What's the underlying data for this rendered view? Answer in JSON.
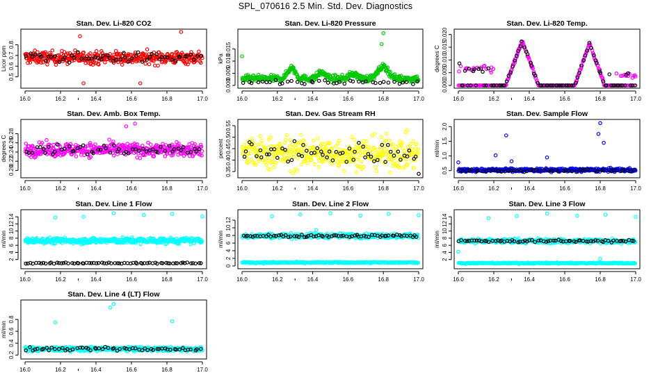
{
  "page": {
    "title": "SPL_070616  2.5 Min. Std. Dev. Diagnostics"
  },
  "series_colors": {
    "red": "#ff0000",
    "green": "#00c800",
    "magenta": "#ff00ff",
    "yellow": "#ffff00",
    "blue": "#0000ff",
    "cyan": "#00ffff",
    "black": "#000000"
  },
  "chart_data": [
    {
      "id": "co2",
      "type": "scatter",
      "title": "Stan. Dev. Li-820 CO2",
      "ylabel": "Licor ppm",
      "xlim": [
        16.0,
        17.0
      ],
      "ylim": [
        0.42,
        0.92
      ],
      "xticks": [
        "16.0",
        "16.2",
        "16.4",
        "16.6",
        "16.8",
        "17.0"
      ],
      "yticks": [
        {
          "v": 0.5,
          "l": "0.5"
        },
        {
          "v": 0.6,
          "l": "0.6"
        },
        {
          "v": 0.7,
          "l": "0.7"
        },
        {
          "v": 0.8,
          "l": "0.8"
        }
      ],
      "series": [
        {
          "color": "red",
          "n": 420,
          "mode": "band",
          "base": 0.68,
          "spread": 0.1
        },
        {
          "color": "black",
          "n": 55,
          "mode": "band",
          "base": 0.68,
          "spread": 0.08
        },
        {
          "color": "red",
          "mode": "points",
          "x": [
            16.33,
            16.65,
            16.88,
            16.31
          ],
          "y": [
            0.44,
            0.44,
            0.92,
            0.88
          ]
        }
      ]
    },
    {
      "id": "pressure",
      "type": "scatter",
      "title": "Stan. Dev. Li-820 Pressure",
      "ylabel": "kPa",
      "xlim": [
        16.0,
        17.0
      ],
      "ylim": [
        0.0,
        0.022
      ],
      "xticks": [
        "16.0",
        "16.2",
        "16.4",
        "16.6",
        "16.8",
        "17.0"
      ],
      "yticks": [
        {
          "v": 0.0,
          "l": "0.000"
        },
        {
          "v": 0.005,
          "l": "0.005"
        },
        {
          "v": 0.01,
          "l": "0.010"
        },
        {
          "v": 0.015,
          "l": "0.015"
        }
      ],
      "series": [
        {
          "color": "green",
          "n": 420,
          "mode": "pressure"
        },
        {
          "color": "black",
          "n": 40,
          "mode": "band",
          "base": 0.0012,
          "spread": 0.002
        },
        {
          "color": "green",
          "mode": "points",
          "x": [
            16.8,
            16.79,
            16.0
          ],
          "y": [
            0.0215,
            0.017,
            0.012
          ]
        }
      ]
    },
    {
      "id": "temp",
      "type": "scatter",
      "title": "Stan. Dev. Li-820 Temp.",
      "ylabel": "degrees C",
      "xlim": [
        16.0,
        17.0
      ],
      "ylim": [
        0.0,
        0.021
      ],
      "xticks": [
        "16.0",
        "16.2",
        "16.4",
        "16.6",
        "16.8",
        "17.0"
      ],
      "yticks": [
        {
          "v": 0.0,
          "l": "0.000"
        },
        {
          "v": 0.005,
          "l": "0.005"
        },
        {
          "v": 0.01,
          "l": "0.010"
        },
        {
          "v": 0.015,
          "l": "0.015"
        },
        {
          "v": 0.02,
          "l": "0.020"
        }
      ],
      "series": [
        {
          "color": "magenta",
          "n": 300,
          "mode": "temp"
        },
        {
          "color": "black",
          "n": 90,
          "mode": "temp"
        }
      ]
    },
    {
      "id": "ambbox",
      "type": "scatter",
      "title": "Stan. Dev. Amb. Box Temp.",
      "ylabel": "degrees C",
      "xlim": [
        16.0,
        17.0
      ],
      "ylim": [
        0.19,
        0.305
      ],
      "xticks": [
        "16.0",
        "16.2",
        "16.4",
        "16.6",
        "16.8",
        "17.0"
      ],
      "yticks": [
        {
          "v": 0.2,
          "l": "0.20"
        },
        {
          "v": 0.22,
          "l": "0.22"
        },
        {
          "v": 0.24,
          "l": "0.24"
        },
        {
          "v": 0.26,
          "l": "0.26"
        },
        {
          "v": 0.28,
          "l": "0.28"
        }
      ],
      "series": [
        {
          "color": "magenta",
          "n": 420,
          "mode": "band",
          "base": 0.245,
          "spread": 0.025
        },
        {
          "color": "black",
          "n": 55,
          "mode": "band",
          "base": 0.245,
          "spread": 0.02
        },
        {
          "color": "magenta",
          "mode": "points",
          "x": [
            16.62,
            16.57
          ],
          "y": [
            0.302,
            0.296
          ]
        }
      ]
    },
    {
      "id": "rh",
      "type": "scatter",
      "title": "Stan. Dev. Gas Stream RH",
      "ylabel": "percent",
      "xlim": [
        16.0,
        17.0
      ],
      "ylim": [
        0.335,
        0.565
      ],
      "xticks": [
        "16.0",
        "16.2",
        "16.4",
        "16.6",
        "16.8",
        "17.0"
      ],
      "yticks": [
        {
          "v": 0.35,
          "l": "0.35"
        },
        {
          "v": 0.4,
          "l": "0.40"
        },
        {
          "v": 0.45,
          "l": "0.45"
        },
        {
          "v": 0.5,
          "l": "0.50"
        },
        {
          "v": 0.55,
          "l": "0.55"
        }
      ],
      "series": [
        {
          "color": "yellow",
          "n": 420,
          "mode": "band",
          "base": 0.43,
          "spread": 0.12
        },
        {
          "color": "black",
          "n": 55,
          "mode": "band",
          "base": 0.43,
          "spread": 0.09
        },
        {
          "color": "black",
          "mode": "points",
          "x": [
            17.0
          ],
          "y": [
            0.34
          ]
        }
      ]
    },
    {
      "id": "sampleflow",
      "type": "scatter",
      "title": "Stan. Dev. Sample Flow",
      "ylabel": "ml/min",
      "xlim": [
        16.0,
        17.0
      ],
      "ylim": [
        0.35,
        2.15
      ],
      "xticks": [
        "16.0",
        "16.2",
        "16.4",
        "16.6",
        "16.8",
        "17.0"
      ],
      "yticks": [
        {
          "v": 0.5,
          "l": "0.5"
        },
        {
          "v": 1.0,
          "l": "1.0"
        },
        {
          "v": 1.5,
          "l": "1.5"
        },
        {
          "v": 2.0,
          "l": "2.0"
        }
      ],
      "series": [
        {
          "color": "blue",
          "n": 420,
          "mode": "band",
          "base": 0.52,
          "spread": 0.1
        },
        {
          "color": "black",
          "n": 55,
          "mode": "band",
          "base": 0.5,
          "spread": 0.07
        },
        {
          "color": "blue",
          "mode": "points",
          "x": [
            16.8,
            16.79,
            16.82,
            16.27,
            16.21,
            16.5,
            16.0,
            16.3
          ],
          "y": [
            2.12,
            1.75,
            1.45,
            1.7,
            1.02,
            0.95,
            0.78,
            0.82
          ]
        }
      ]
    },
    {
      "id": "line1",
      "type": "scatter",
      "title": "Stan. Dev. Line 1 Flow",
      "ylabel": "ml/min",
      "xlim": [
        16.0,
        17.0
      ],
      "ylim": [
        0.2,
        15.2
      ],
      "xticks": [
        "16.0",
        "16.2",
        "16.4",
        "16.6",
        "16.8",
        "17.0"
      ],
      "yticks": [
        {
          "v": 2,
          "l": "2"
        },
        {
          "v": 4,
          "l": "4"
        },
        {
          "v": 6,
          "l": "6"
        },
        {
          "v": 8,
          "l": "8"
        },
        {
          "v": 10,
          "l": "10"
        },
        {
          "v": 12,
          "l": "12"
        },
        {
          "v": 14,
          "l": "14"
        }
      ],
      "series": [
        {
          "color": "cyan",
          "n": 420,
          "mode": "band",
          "base": 7.3,
          "spread": 1.4
        },
        {
          "color": "black",
          "n": 70,
          "mode": "band",
          "base": 1.0,
          "spread": 0.3
        },
        {
          "color": "cyan",
          "mode": "points",
          "x": [
            16.17,
            16.33,
            16.5,
            16.67,
            16.83,
            17.0
          ],
          "y": [
            13.8,
            14.0,
            15.0,
            14.5,
            14.8,
            14.1
          ]
        }
      ]
    },
    {
      "id": "line2",
      "type": "scatter",
      "title": "Stan. Dev. Line 2 Flow",
      "ylabel": "ml/min",
      "xlim": [
        16.0,
        17.0
      ],
      "ylim": [
        0.0,
        14.0
      ],
      "xticks": [
        "16.0",
        "16.2",
        "16.4",
        "16.6",
        "16.8",
        "17.0"
      ],
      "yticks": [
        {
          "v": 0,
          "l": "0"
        },
        {
          "v": 2,
          "l": "2"
        },
        {
          "v": 4,
          "l": "4"
        },
        {
          "v": 6,
          "l": "6"
        },
        {
          "v": 8,
          "l": "8"
        },
        {
          "v": 10,
          "l": "10"
        },
        {
          "v": 12,
          "l": "12"
        }
      ],
      "series": [
        {
          "color": "cyan",
          "n": 300,
          "mode": "band",
          "base": 7.9,
          "spread": 1.1
        },
        {
          "color": "cyan",
          "n": 250,
          "mode": "band",
          "base": 0.9,
          "spread": 0.3
        },
        {
          "color": "black",
          "n": 70,
          "mode": "band",
          "base": 7.9,
          "spread": 0.6
        },
        {
          "color": "cyan",
          "mode": "points",
          "x": [
            16.17,
            16.33,
            16.5,
            16.67,
            16.83,
            17.0,
            16.42
          ],
          "y": [
            13.0,
            13.5,
            13.8,
            13.2,
            13.6,
            13.3,
            9.4
          ]
        }
      ]
    },
    {
      "id": "line3",
      "type": "scatter",
      "title": "Stan. Dev. Line 3 Flow",
      "ylabel": "ml/min",
      "xlim": [
        16.0,
        17.0
      ],
      "ylim": [
        0.2,
        15.2
      ],
      "xticks": [
        "16.0",
        "16.2",
        "16.4",
        "16.6",
        "16.8",
        "17.0"
      ],
      "yticks": [
        {
          "v": 2,
          "l": "2"
        },
        {
          "v": 4,
          "l": "4"
        },
        {
          "v": 6,
          "l": "6"
        },
        {
          "v": 8,
          "l": "8"
        },
        {
          "v": 10,
          "l": "10"
        },
        {
          "v": 12,
          "l": "12"
        },
        {
          "v": 14,
          "l": "14"
        }
      ],
      "series": [
        {
          "color": "cyan",
          "n": 300,
          "mode": "band",
          "base": 7.2,
          "spread": 1.2
        },
        {
          "color": "cyan",
          "n": 250,
          "mode": "band",
          "base": 1.0,
          "spread": 0.3
        },
        {
          "color": "black",
          "n": 70,
          "mode": "band",
          "base": 7.2,
          "spread": 0.6
        },
        {
          "color": "cyan",
          "mode": "points",
          "x": [
            16.17,
            16.33,
            16.5,
            16.67,
            16.83,
            17.0,
            16.0,
            16.8
          ],
          "y": [
            13.6,
            14.2,
            14.9,
            14.3,
            14.6,
            14.0,
            4.2,
            2.2
          ]
        }
      ]
    },
    {
      "id": "line4",
      "type": "scatter",
      "title": "Stan. Dev. Line 4 (LT) Flow",
      "ylabel": "ml/min",
      "xlim": [
        16.0,
        17.0
      ],
      "ylim": [
        0.18,
        1.08
      ],
      "xticks": [
        "16.0",
        "16.2",
        "16.4",
        "16.6",
        "16.8",
        "17.0"
      ],
      "yticks": [
        {
          "v": 0.2,
          "l": "0.2"
        },
        {
          "v": 0.4,
          "l": "0.4"
        },
        {
          "v": 0.6,
          "l": "0.6"
        },
        {
          "v": 0.8,
          "l": "0.8"
        }
      ],
      "series": [
        {
          "color": "cyan",
          "n": 420,
          "mode": "band",
          "base": 0.3,
          "spread": 0.06
        },
        {
          "color": "black",
          "n": 60,
          "mode": "band",
          "base": 0.3,
          "spread": 0.05
        },
        {
          "color": "cyan",
          "mode": "points",
          "x": [
            16.17,
            16.83,
            16.5,
            16.48
          ],
          "y": [
            0.75,
            0.77,
            1.06,
            1.0
          ]
        }
      ]
    }
  ]
}
